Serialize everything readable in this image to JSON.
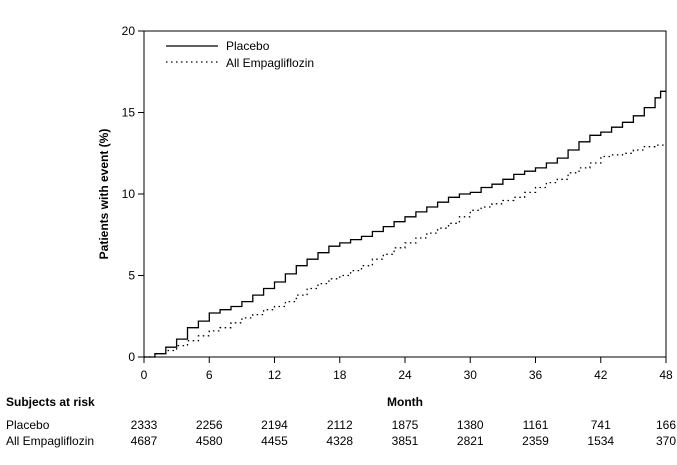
{
  "chart_data": {
    "type": "line",
    "title": "",
    "xlabel": "Month",
    "ylabel": "Patients with event (%)",
    "xlim": [
      0,
      48
    ],
    "ylim": [
      0,
      20
    ],
    "x_ticks": [
      0,
      6,
      12,
      18,
      24,
      30,
      36,
      42,
      48
    ],
    "y_ticks": [
      0,
      5,
      10,
      15,
      20
    ],
    "grid": false,
    "legend_position": "top-left",
    "series": [
      {
        "name": "Placebo",
        "line_style": "solid",
        "color": "#000000",
        "points": [
          [
            0,
            0
          ],
          [
            1,
            0.2
          ],
          [
            2,
            0.6
          ],
          [
            3,
            1.1
          ],
          [
            4,
            1.8
          ],
          [
            5,
            2.2
          ],
          [
            6,
            2.7
          ],
          [
            7,
            2.9
          ],
          [
            8,
            3.1
          ],
          [
            9,
            3.4
          ],
          [
            10,
            3.8
          ],
          [
            11,
            4.2
          ],
          [
            12,
            4.6
          ],
          [
            13,
            5.1
          ],
          [
            14,
            5.6
          ],
          [
            15,
            6.0
          ],
          [
            16,
            6.4
          ],
          [
            17,
            6.8
          ],
          [
            18,
            7.0
          ],
          [
            19,
            7.2
          ],
          [
            20,
            7.4
          ],
          [
            21,
            7.7
          ],
          [
            22,
            8.0
          ],
          [
            23,
            8.3
          ],
          [
            24,
            8.6
          ],
          [
            25,
            8.9
          ],
          [
            26,
            9.2
          ],
          [
            27,
            9.5
          ],
          [
            28,
            9.8
          ],
          [
            29,
            10.0
          ],
          [
            30,
            10.1
          ],
          [
            31,
            10.4
          ],
          [
            32,
            10.6
          ],
          [
            33,
            10.9
          ],
          [
            34,
            11.2
          ],
          [
            35,
            11.4
          ],
          [
            36,
            11.6
          ],
          [
            37,
            11.9
          ],
          [
            38,
            12.2
          ],
          [
            39,
            12.7
          ],
          [
            40,
            13.2
          ],
          [
            41,
            13.6
          ],
          [
            42,
            13.8
          ],
          [
            43,
            14.1
          ],
          [
            44,
            14.4
          ],
          [
            45,
            14.8
          ],
          [
            46,
            15.3
          ],
          [
            47,
            15.9
          ],
          [
            47.5,
            16.3
          ],
          [
            48,
            16.3
          ]
        ]
      },
      {
        "name": "All Empagliflozin",
        "line_style": "dotted",
        "color": "#000000",
        "points": [
          [
            0,
            0
          ],
          [
            1,
            0.2
          ],
          [
            2,
            0.4
          ],
          [
            3,
            0.7
          ],
          [
            4,
            1.0
          ],
          [
            5,
            1.3
          ],
          [
            6,
            1.6
          ],
          [
            7,
            1.8
          ],
          [
            8,
            2.1
          ],
          [
            9,
            2.4
          ],
          [
            10,
            2.6
          ],
          [
            11,
            2.9
          ],
          [
            12,
            3.1
          ],
          [
            13,
            3.4
          ],
          [
            14,
            3.8
          ],
          [
            15,
            4.2
          ],
          [
            16,
            4.5
          ],
          [
            17,
            4.8
          ],
          [
            18,
            5.0
          ],
          [
            19,
            5.3
          ],
          [
            20,
            5.6
          ],
          [
            21,
            6.0
          ],
          [
            22,
            6.3
          ],
          [
            23,
            6.7
          ],
          [
            24,
            7.0
          ],
          [
            25,
            7.3
          ],
          [
            26,
            7.6
          ],
          [
            27,
            7.9
          ],
          [
            28,
            8.2
          ],
          [
            29,
            8.6
          ],
          [
            30,
            9.0
          ],
          [
            31,
            9.2
          ],
          [
            32,
            9.4
          ],
          [
            33,
            9.6
          ],
          [
            34,
            9.8
          ],
          [
            35,
            10.1
          ],
          [
            36,
            10.4
          ],
          [
            37,
            10.7
          ],
          [
            38,
            10.9
          ],
          [
            39,
            11.3
          ],
          [
            40,
            11.6
          ],
          [
            41,
            11.9
          ],
          [
            42,
            12.3
          ],
          [
            43,
            12.4
          ],
          [
            44,
            12.5
          ],
          [
            45,
            12.7
          ],
          [
            46,
            12.9
          ],
          [
            47,
            13.0
          ],
          [
            48,
            13.0
          ]
        ]
      }
    ]
  },
  "risk_table": {
    "header": "Subjects at risk",
    "x_positions": [
      0,
      6,
      12,
      18,
      24,
      30,
      36,
      42,
      48
    ],
    "rows": [
      {
        "label": "Placebo",
        "values": [
          "2333",
          "2256",
          "2194",
          "2112",
          "1875",
          "1380",
          "1161",
          "741",
          "166"
        ]
      },
      {
        "label": "All Empagliflozin",
        "values": [
          "4687",
          "4580",
          "4455",
          "4328",
          "3851",
          "2821",
          "2359",
          "1534",
          "370"
        ]
      }
    ]
  }
}
